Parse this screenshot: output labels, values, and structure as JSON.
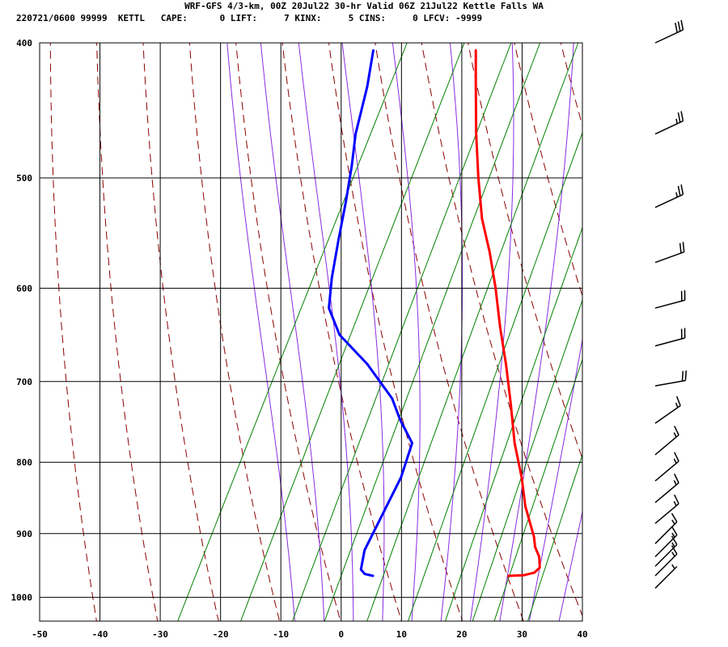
{
  "chart_data": {
    "type": "line",
    "title": "WRF-GFS 4/3-km, 00Z 20Jul22 30-hr Valid 06Z 21Jul22 Kettle Falls WA",
    "subtitle": "220721/0600 99999  KETTL   CAPE:      0 LIFT:     7 KINX:     5 CINS:     0 LFCV: -9999",
    "xlabel": "",
    "ylabel": "",
    "xlim": [
      -50,
      40
    ],
    "ylim": [
      1040,
      400
    ],
    "x_ticks": [
      "-50",
      "-40",
      "-30",
      "-20",
      "-10",
      "0",
      "10",
      "20",
      "30",
      "40"
    ],
    "y_ticks": [
      "400",
      "500",
      "600",
      "700",
      "800",
      "900",
      "1000"
    ],
    "series": [
      {
        "name": "Temperature",
        "color": "#ff0000",
        "points": [
          [
            24,
            965
          ],
          [
            26.5,
            964
          ],
          [
            28,
            960
          ],
          [
            28.5,
            952
          ],
          [
            27.5,
            935
          ],
          [
            26,
            920
          ],
          [
            25,
            905
          ],
          [
            21,
            860
          ],
          [
            18,
            820
          ],
          [
            14,
            775
          ],
          [
            10,
            725
          ],
          [
            6,
            680
          ],
          [
            2,
            640
          ],
          [
            -2,
            600
          ],
          [
            -6,
            565
          ],
          [
            -10,
            535
          ],
          [
            -14,
            500
          ],
          [
            -18,
            465
          ],
          [
            -22,
            430
          ],
          [
            -25,
            405
          ]
        ]
      },
      {
        "name": "Dewpoint",
        "color": "#0000ff",
        "points": [
          [
            1.5,
            965
          ],
          [
            0,
            962
          ],
          [
            -1,
            955
          ],
          [
            -2,
            925
          ],
          [
            -2,
            880
          ],
          [
            -2,
            820
          ],
          [
            -3,
            775
          ],
          [
            -7,
            745
          ],
          [
            -10,
            720
          ],
          [
            -17,
            680
          ],
          [
            -24,
            648
          ],
          [
            -28,
            620
          ],
          [
            -30,
            590
          ],
          [
            -32,
            555
          ],
          [
            -34,
            520
          ],
          [
            -36,
            490
          ],
          [
            -38,
            465
          ],
          [
            -40,
            430
          ],
          [
            -42,
            405
          ]
        ]
      }
    ],
    "background_lines": {
      "dry_adiabats_theta_K": [
        210,
        220,
        230,
        240,
        250,
        260,
        270,
        280,
        290,
        300,
        310,
        320,
        330,
        340,
        350,
        360,
        370,
        380,
        390,
        400,
        410,
        420
      ],
      "moist_adiabats_thetaw_C": [
        -10,
        -5,
        0,
        5,
        10,
        15,
        20,
        25,
        30,
        35
      ],
      "mixing_ratio_gkg": [
        0.4,
        1,
        2,
        3,
        5,
        8,
        12,
        16,
        20,
        28
      ]
    },
    "wind_barbs": [
      {
        "p": 400,
        "dir": 245,
        "kt": 30
      },
      {
        "p": 465,
        "dir": 245,
        "kt": 25
      },
      {
        "p": 525,
        "dir": 245,
        "kt": 25
      },
      {
        "p": 575,
        "dir": 250,
        "kt": 20
      },
      {
        "p": 620,
        "dir": 255,
        "kt": 20
      },
      {
        "p": 660,
        "dir": 255,
        "kt": 20
      },
      {
        "p": 705,
        "dir": 260,
        "kt": 20
      },
      {
        "p": 750,
        "dir": 235,
        "kt": 15
      },
      {
        "p": 790,
        "dir": 230,
        "kt": 15
      },
      {
        "p": 825,
        "dir": 230,
        "kt": 15
      },
      {
        "p": 855,
        "dir": 230,
        "kt": 15
      },
      {
        "p": 885,
        "dir": 230,
        "kt": 15
      },
      {
        "p": 915,
        "dir": 225,
        "kt": 15
      },
      {
        "p": 935,
        "dir": 225,
        "kt": 15
      },
      {
        "p": 950,
        "dir": 225,
        "kt": 15
      },
      {
        "p": 965,
        "dir": 225,
        "kt": 15
      },
      {
        "p": 985,
        "dir": 225,
        "kt": 5
      }
    ],
    "colors": {
      "grid": "#000000",
      "dry_adiabat": "#8b0000",
      "moist_adiabat": "#8a2be2",
      "mixing_ratio": "#008000",
      "barb": "#000000"
    }
  }
}
